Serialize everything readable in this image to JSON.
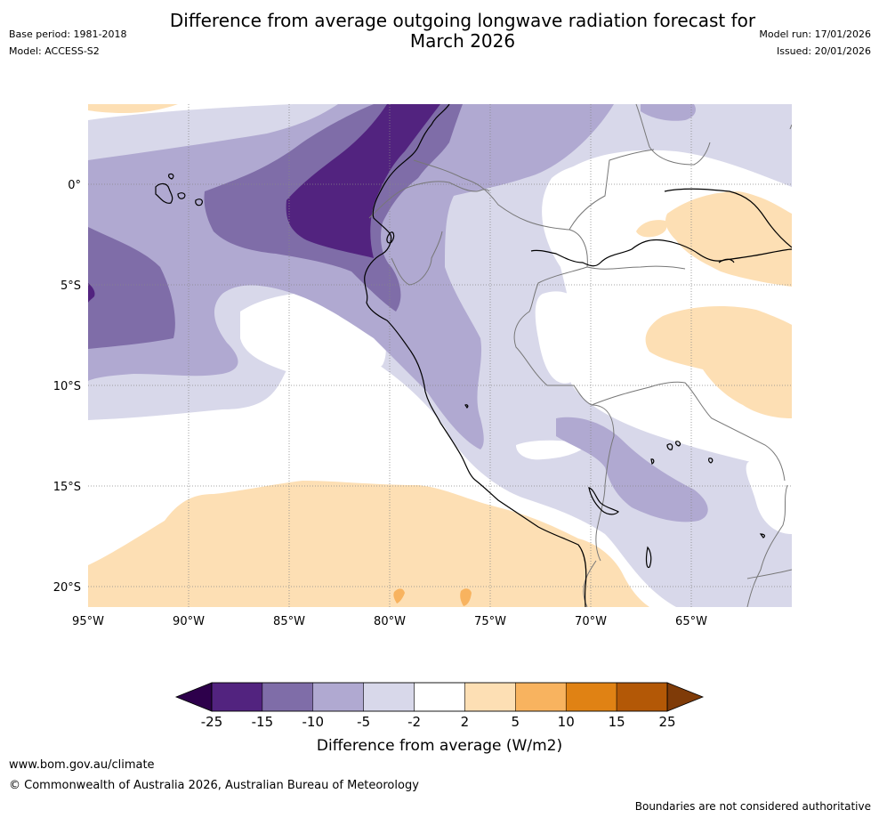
{
  "header": {
    "title_line1": "Difference from average outgoing longwave radiation forecast for",
    "title_line2": "March 2026",
    "base_period": "Base period: 1981-2018",
    "model": "Model: ACCESS-S2",
    "model_run": "Model run: 17/01/2026",
    "issued": "Issued: 20/01/2026"
  },
  "chart_data": {
    "type": "map",
    "title": "Difference from average outgoing longwave radiation forecast for March 2026",
    "variable": "Outgoing longwave radiation anomaly",
    "units": "W/m2",
    "region": "South America (Peru / Ecuador / Bolivia) and eastern Pacific",
    "lon_range": [
      -95,
      -60
    ],
    "lat_range": [
      -21,
      4
    ],
    "x_ticks": [
      {
        "value": -95,
        "label": "95°W"
      },
      {
        "value": -90,
        "label": "90°W"
      },
      {
        "value": -85,
        "label": "85°W"
      },
      {
        "value": -80,
        "label": "80°W"
      },
      {
        "value": -75,
        "label": "75°W"
      },
      {
        "value": -70,
        "label": "70°W"
      },
      {
        "value": -65,
        "label": "65°W"
      }
    ],
    "y_ticks": [
      {
        "value": 0,
        "label": "0°"
      },
      {
        "value": -5,
        "label": "5°S"
      },
      {
        "value": -10,
        "label": "10°S"
      },
      {
        "value": -15,
        "label": "15°S"
      },
      {
        "value": -20,
        "label": "20°S"
      }
    ],
    "colorbar": {
      "label": "Difference from average (W/m2)",
      "boundaries": [
        "-25",
        "-15",
        "-10",
        "-5",
        "-2",
        "2",
        "5",
        "10",
        "15",
        "25"
      ],
      "colors": [
        "#52237f",
        "#7f6da8",
        "#b0a9d1",
        "#d8d8ea",
        "#ffffff",
        "#fddfb4",
        "#f8b35f",
        "#e08214",
        "#b35806"
      ],
      "under_color": "#2d004b",
      "over_color": "#7f3b08",
      "extend": "both"
    }
  },
  "footer": {
    "url": "www.bom.gov.au/climate",
    "copyright": "© Commonwealth of Australia 2026, Australian Bureau of Meteorology",
    "disclaimer": "Boundaries are not considered authoritative"
  }
}
